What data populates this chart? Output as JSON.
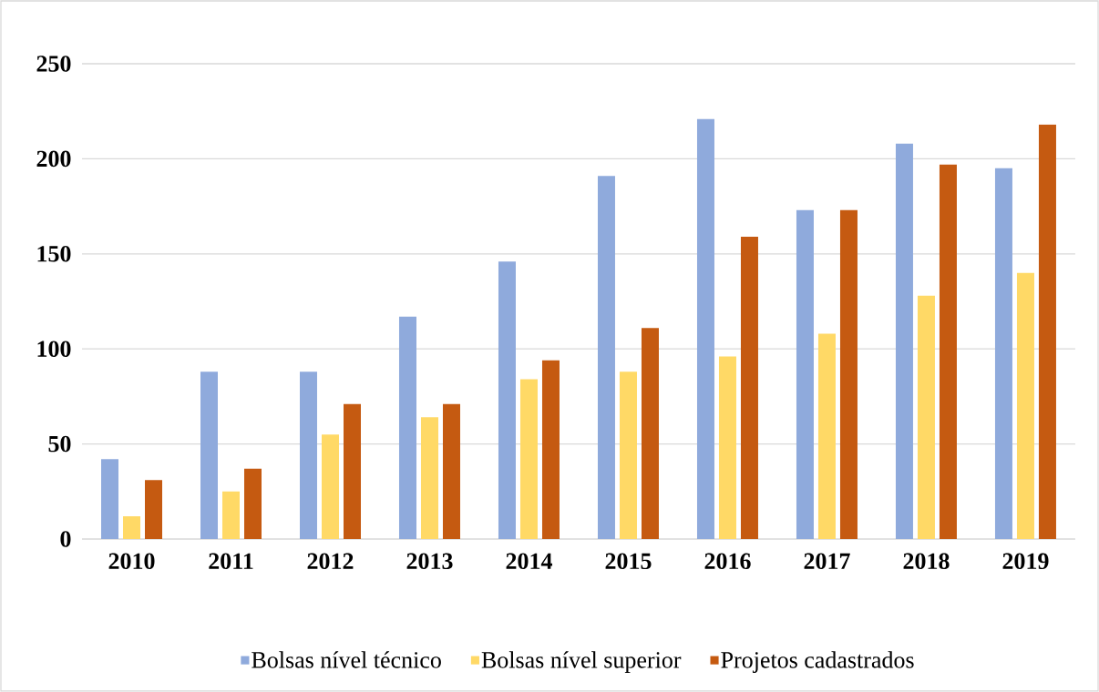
{
  "chart_data": {
    "type": "bar",
    "categories": [
      "2010",
      "2011",
      "2012",
      "2013",
      "2014",
      "2015",
      "2016",
      "2017",
      "2018",
      "2019"
    ],
    "series": [
      {
        "name": "Bolsas nível técnico",
        "color": "#8faadc",
        "values": [
          42,
          88,
          88,
          117,
          146,
          191,
          221,
          173,
          208,
          195
        ]
      },
      {
        "name": "Bolsas nível superior",
        "color": "#ffd966",
        "values": [
          12,
          25,
          55,
          64,
          84,
          88,
          96,
          108,
          128,
          140
        ]
      },
      {
        "name": "Projetos cadastrados",
        "color": "#c55a11",
        "values": [
          31,
          37,
          71,
          71,
          94,
          111,
          159,
          173,
          197,
          218
        ]
      }
    ],
    "ylim": [
      0,
      250
    ],
    "yticks": [
      0,
      50,
      100,
      150,
      200,
      250
    ],
    "grid": "y",
    "legend": "bottom"
  }
}
